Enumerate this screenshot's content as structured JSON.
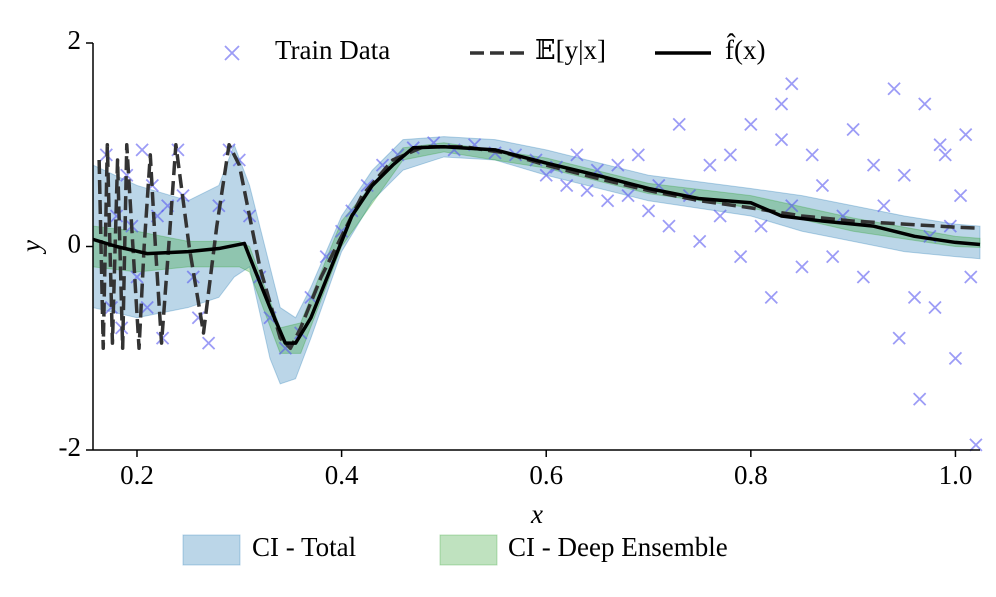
{
  "chart_data": {
    "type": "line",
    "xlabel": "x",
    "ylabel": "y",
    "xlim": [
      0.157,
      1.024
    ],
    "ylim": [
      -2,
      2
    ],
    "xticks": [
      0.2,
      0.4,
      0.6,
      0.8,
      {
        "value": 1,
        "label": "1.0"
      }
    ],
    "yticks": [
      -2,
      0,
      2
    ],
    "legend": "upper center",
    "series": [
      {
        "name": "Train Data",
        "type": "scatter",
        "color": "#5a5af0",
        "x": [
          0.17,
          0.175,
          0.18,
          0.185,
          0.19,
          0.195,
          0.2,
          0.205,
          0.21,
          0.215,
          0.22,
          0.225,
          0.23,
          0.24,
          0.245,
          0.255,
          0.26,
          0.27,
          0.28,
          0.29,
          0.3,
          0.31,
          0.32,
          0.33,
          0.345,
          0.36,
          0.37,
          0.385,
          0.4,
          0.41,
          0.425,
          0.44,
          0.455,
          0.47,
          0.49,
          0.51,
          0.53,
          0.55,
          0.57,
          0.59,
          0.6,
          0.61,
          0.62,
          0.63,
          0.64,
          0.65,
          0.66,
          0.67,
          0.68,
          0.69,
          0.7,
          0.71,
          0.72,
          0.73,
          0.74,
          0.75,
          0.76,
          0.77,
          0.78,
          0.79,
          0.8,
          0.81,
          0.82,
          0.83,
          0.84,
          0.85,
          0.86,
          0.87,
          0.88,
          0.89,
          0.9,
          0.91,
          0.92,
          0.93,
          0.94,
          0.945,
          0.95,
          0.96,
          0.965,
          0.97,
          0.975,
          0.98,
          0.99,
          1.0,
          1.005,
          1.01,
          1.015,
          1.02,
          0.84,
          0.985,
          0.83,
          0.995
        ],
        "values": [
          0.9,
          -0.6,
          0.3,
          -0.8,
          0.7,
          0.2,
          -0.3,
          0.95,
          -0.6,
          0.6,
          0.3,
          -0.9,
          0.4,
          0.95,
          0.5,
          -0.3,
          -0.7,
          -0.95,
          0.4,
          0.95,
          0.85,
          0.3,
          -0.3,
          -0.7,
          -1.0,
          -0.85,
          -0.5,
          -0.1,
          0.15,
          0.35,
          0.6,
          0.8,
          0.9,
          0.97,
          1.02,
          0.95,
          1.0,
          0.92,
          0.9,
          0.85,
          0.7,
          0.78,
          0.6,
          0.9,
          0.55,
          0.75,
          0.45,
          0.8,
          0.5,
          0.9,
          0.35,
          0.6,
          0.2,
          1.2,
          0.5,
          0.05,
          0.8,
          0.3,
          0.9,
          -0.1,
          1.2,
          0.2,
          -0.5,
          1.05,
          0.4,
          -0.2,
          0.9,
          0.6,
          -0.1,
          0.3,
          1.15,
          -0.3,
          0.8,
          0.4,
          1.55,
          -0.9,
          0.7,
          -0.5,
          -1.5,
          1.4,
          0.1,
          -0.6,
          0.9,
          -1.1,
          0.5,
          1.1,
          -0.3,
          -1.95,
          1.6,
          1.0,
          1.4,
          0.2
        ]
      },
      {
        "name": "𝔼[y|x]",
        "type": "line",
        "dashed": true,
        "color": "#333333",
        "x": [
          0.163,
          0.167,
          0.171,
          0.176,
          0.181,
          0.186,
          0.19,
          0.196,
          0.202,
          0.207,
          0.213,
          0.218,
          0.224,
          0.231,
          0.238,
          0.251,
          0.265,
          0.278,
          0.29,
          0.3,
          0.32,
          0.34,
          0.35,
          0.36,
          0.38,
          0.4,
          0.42,
          0.45,
          0.48,
          0.52,
          0.56,
          0.6,
          0.65,
          0.7,
          0.75,
          0.8,
          0.85,
          0.9,
          0.95,
          1.0,
          1.024
        ],
        "values": [
          0.85,
          -1.0,
          1.0,
          -0.95,
          0.85,
          -1.0,
          1.0,
          0.0,
          -1.0,
          0.0,
          0.9,
          0.0,
          -0.95,
          0.0,
          1.0,
          0.0,
          -0.85,
          0.2,
          1.0,
          0.8,
          -0.2,
          -0.9,
          -1.0,
          -0.8,
          -0.3,
          0.1,
          0.5,
          0.85,
          0.98,
          0.98,
          0.92,
          0.8,
          0.67,
          0.55,
          0.45,
          0.38,
          0.3,
          0.25,
          0.22,
          0.19,
          0.18
        ]
      },
      {
        "name": "f̂(x)",
        "type": "line",
        "color": "#000000",
        "x": [
          0.157,
          0.18,
          0.21,
          0.25,
          0.28,
          0.305,
          0.31,
          0.33,
          0.345,
          0.355,
          0.37,
          0.39,
          0.41,
          0.43,
          0.45,
          0.47,
          0.5,
          0.55,
          0.6,
          0.65,
          0.7,
          0.75,
          0.8,
          0.83,
          0.87,
          0.92,
          0.96,
          1.0,
          1.024
        ],
        "values": [
          0.07,
          0.0,
          -0.07,
          -0.05,
          -0.02,
          0.03,
          -0.1,
          -0.6,
          -0.95,
          -0.95,
          -0.7,
          -0.2,
          0.3,
          0.6,
          0.8,
          0.97,
          0.98,
          0.95,
          0.82,
          0.7,
          0.57,
          0.47,
          0.43,
          0.3,
          0.25,
          0.2,
          0.1,
          0.04,
          0.02
        ]
      }
    ],
    "bands": [
      {
        "name": "CI - Total",
        "color": "#1f77b4",
        "x": [
          0.157,
          0.2,
          0.25,
          0.28,
          0.295,
          0.31,
          0.33,
          0.34,
          0.355,
          0.37,
          0.4,
          0.43,
          0.46,
          0.5,
          0.55,
          0.6,
          0.7,
          0.8,
          0.85,
          0.9,
          0.95,
          1.0,
          1.024
        ],
        "lower": [
          -0.6,
          -0.7,
          -0.6,
          -0.5,
          -0.3,
          -0.2,
          -1.1,
          -1.35,
          -1.3,
          -0.9,
          -0.05,
          0.45,
          0.75,
          0.88,
          0.85,
          0.7,
          0.45,
          0.3,
          0.15,
          0.05,
          -0.05,
          -0.1,
          -0.12
        ],
        "upper": [
          0.8,
          0.6,
          0.45,
          0.6,
          1.0,
          0.6,
          -0.2,
          -0.6,
          -0.7,
          -0.4,
          0.3,
          0.75,
          1.05,
          1.08,
          1.05,
          0.95,
          0.7,
          0.57,
          0.5,
          0.4,
          0.3,
          0.22,
          0.2
        ]
      },
      {
        "name": "CI - Deep Ensemble",
        "color": "#2ca02c",
        "x": [
          0.157,
          0.2,
          0.25,
          0.3,
          0.31,
          0.34,
          0.36,
          0.4,
          0.46,
          0.5,
          0.6,
          0.7,
          0.8,
          0.9,
          1.0,
          1.024
        ],
        "lower": [
          -0.2,
          -0.25,
          -0.2,
          -0.2,
          -0.25,
          -1.05,
          -1.05,
          0.0,
          0.85,
          0.93,
          0.77,
          0.52,
          0.38,
          0.15,
          0.0,
          -0.01
        ],
        "upper": [
          0.2,
          0.15,
          0.05,
          0.05,
          0.0,
          -0.8,
          -0.75,
          0.25,
          0.97,
          1.02,
          0.87,
          0.62,
          0.5,
          0.28,
          0.1,
          0.08
        ]
      }
    ]
  }
}
